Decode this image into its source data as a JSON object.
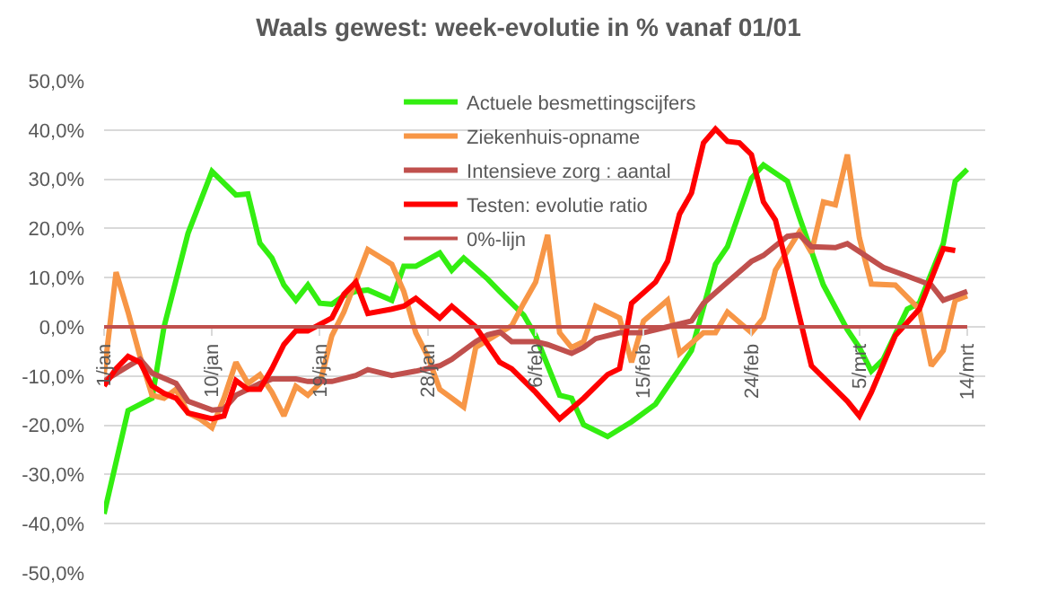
{
  "chart_data": {
    "type": "line",
    "title": "Waals gewest: week-evolutie in % vanaf 01/01",
    "xlim": [
      "--01-01",
      "--03-15T12:00"
    ],
    "xticks": [
      {
        "value": "--01-01",
        "label": "1/jan"
      },
      {
        "value": "--01-10",
        "label": "10/jan"
      },
      {
        "value": "--01-19",
        "label": "19/jan"
      },
      {
        "value": "--01-28",
        "label": "28/jan"
      },
      {
        "value": "--02-06",
        "label": "6/feb"
      },
      {
        "value": "--02-15",
        "label": "15/feb"
      },
      {
        "value": "--02-24",
        "label": "24/feb"
      },
      {
        "value": "--03-05",
        "label": "5/mrt"
      },
      {
        "value": "--03-14",
        "label": "14/mrt"
      }
    ],
    "ylim": [
      -50,
      50
    ],
    "yticks": [
      {
        "value": -50,
        "label": "-50,0%"
      },
      {
        "value": -40,
        "label": "-40,0%"
      },
      {
        "value": -30,
        "label": "-30,0%"
      },
      {
        "value": -20,
        "label": "-20,0%"
      },
      {
        "value": -10,
        "label": "-10,0%"
      },
      {
        "value": 0,
        "label": "0,0%"
      },
      {
        "value": 10,
        "label": "10,0%"
      },
      {
        "value": 20,
        "label": "20,0%"
      },
      {
        "value": 30,
        "label": "30,0%"
      },
      {
        "value": 40,
        "label": "40,0%"
      },
      {
        "value": 50,
        "label": "50,0%"
      }
    ],
    "grid": "y",
    "legend": "top",
    "marker": "none",
    "line_style": "solid",
    "series": [
      {
        "name": "Actuele besmettingscijfers",
        "color": "#33ee11",
        "x": [
          "--01-01",
          "--01-03",
          "--01-05",
          "--01-06",
          "--01-08",
          "--01-10",
          "--01-12",
          "--01-13",
          "--01-14",
          "--01-15",
          "--01-16",
          "--01-17",
          "--01-18",
          "--01-19",
          "--01-20",
          "--01-21",
          "--01-22",
          "--01-23",
          "--01-25",
          "--01-26",
          "--01-27",
          "--01-29",
          "--01-30",
          "--01-31",
          "--02-02",
          "--02-03",
          "--02-05",
          "--02-06",
          "--02-08",
          "--02-09",
          "--02-10",
          "--02-12",
          "--02-14",
          "--02-16",
          "--02-18",
          "--02-19",
          "--02-21",
          "--02-22",
          "--02-24",
          "--02-25",
          "--02-27",
          "--02-28",
          "--03-02",
          "--03-04",
          "--03-05",
          "--03-06",
          "--03-07",
          "--03-09",
          "--03-10",
          "--03-12",
          "--03-13",
          "--03-14"
        ],
        "values": [
          -38,
          -17,
          -14.5,
          0,
          19,
          31.6,
          26.8,
          27,
          17,
          14,
          8.5,
          5.4,
          8.5,
          4.8,
          4.6,
          6.3,
          7.2,
          7.5,
          5.4,
          12.3,
          12.3,
          15,
          11.5,
          14,
          9.7,
          7.2,
          2.4,
          -1.8,
          -13.9,
          -14.5,
          -19.9,
          -22.3,
          -19.3,
          -15.7,
          -8.5,
          -4.8,
          12.7,
          16.3,
          30.2,
          32.9,
          29.6,
          22.3,
          8.5,
          -0.6,
          -4.2,
          -9,
          -6.6,
          3.6,
          4.8,
          16.9,
          29.6,
          32
        ]
      },
      {
        "name": "Ziekenhuis-opname",
        "color": "#f79646",
        "x": [
          "--01-01",
          "--01-02",
          "--01-03",
          "--01-04",
          "--01-05",
          "--01-06",
          "--01-07",
          "--01-08",
          "--01-09",
          "--01-10",
          "--01-11",
          "--01-12",
          "--01-13",
          "--01-14",
          "--01-15",
          "--01-16",
          "--01-17",
          "--01-18",
          "--01-19",
          "--01-20",
          "--01-21",
          "--01-23",
          "--01-25",
          "--01-26",
          "--01-27",
          "--01-28",
          "--01-29",
          "--01-30",
          "--01-31",
          "--02-01",
          "--02-03",
          "--02-04",
          "--02-05",
          "--02-06",
          "--02-07",
          "--02-08",
          "--02-09",
          "--02-10",
          "--02-11",
          "--02-13",
          "--02-14",
          "--02-15",
          "--02-17",
          "--02-18",
          "--02-20",
          "--02-21",
          "--02-22",
          "--02-24",
          "--02-25",
          "--02-26",
          "--02-28",
          "--03-01",
          "--03-02",
          "--03-03",
          "--03-04",
          "--03-05",
          "--03-06",
          "--03-08",
          "--03-10",
          "--03-11",
          "--03-12",
          "--03-13",
          "--03-14"
        ],
        "values": [
          -9.7,
          11.1,
          3,
          -6,
          -13.9,
          -14.5,
          -12.7,
          -17.5,
          -18.7,
          -20.5,
          -14.5,
          -7.2,
          -11.5,
          -9.7,
          -13.3,
          -18.1,
          -12.1,
          -13.9,
          -11.5,
          -1.8,
          3,
          15.7,
          12.7,
          7.2,
          -1.2,
          -6,
          -12.7,
          -14.5,
          -16.3,
          -4.2,
          -1.2,
          0.2,
          4.8,
          9.1,
          18.7,
          -1.2,
          -4.2,
          -3,
          4.2,
          1.8,
          -7.2,
          1.2,
          5.4,
          -5.4,
          -1.2,
          -1.2,
          3,
          -1.2,
          1.8,
          11.5,
          19.3,
          15.1,
          25.4,
          24.8,
          35,
          18.1,
          8.7,
          8.5,
          3.6,
          -7.9,
          -4.8,
          5.4,
          6.3
        ]
      },
      {
        "name": "Intensieve zorg : aantal",
        "color": "#c0504d",
        "x": [
          "--01-01",
          "--01-03",
          "--01-04",
          "--01-05",
          "--01-07",
          "--01-08",
          "--01-10",
          "--01-11",
          "--01-12",
          "--01-14",
          "--01-15",
          "--01-17",
          "--01-18",
          "--01-20",
          "--01-22",
          "--01-23",
          "--01-25",
          "--01-27",
          "--01-29",
          "--01-30",
          "--02-01",
          "--02-02",
          "--02-03",
          "--02-04",
          "--02-06",
          "--02-07",
          "--02-09",
          "--02-10",
          "--02-11",
          "--02-13",
          "--02-15",
          "--02-17",
          "--02-19",
          "--02-20",
          "--02-22",
          "--02-24",
          "--02-25",
          "--02-27",
          "--02-28",
          "--03-01",
          "--03-03",
          "--03-04",
          "--03-07",
          "--03-09",
          "--03-11",
          "--03-12",
          "--03-14"
        ],
        "values": [
          -11,
          -8,
          -6.6,
          -9.4,
          -11.5,
          -15.1,
          -16.9,
          -16.7,
          -13.9,
          -11.5,
          -10.6,
          -10.6,
          -11.1,
          -11.1,
          -9.9,
          -8.7,
          -9.9,
          -9,
          -7.9,
          -6.6,
          -3,
          -1.6,
          -1,
          -3,
          -3,
          -3.6,
          -5.4,
          -4.2,
          -2.4,
          -1.2,
          -1.2,
          0,
          1.2,
          4.8,
          9.1,
          13.3,
          14.5,
          18.4,
          18.7,
          16.3,
          16.1,
          16.9,
          12.1,
          10.3,
          8.5,
          5.4,
          7.2
        ]
      },
      {
        "name": "Testen: evolutie ratio",
        "color": "#ff0000",
        "x": [
          "--01-01",
          "--01-02",
          "--01-03",
          "--01-04",
          "--01-05",
          "--01-06",
          "--01-07",
          "--01-08",
          "--01-10",
          "--01-11",
          "--01-12",
          "--01-13",
          "--01-14",
          "--01-15",
          "--01-16",
          "--01-17",
          "--01-18",
          "--01-20",
          "--01-21",
          "--01-22",
          "--01-23",
          "--01-25",
          "--01-26",
          "--01-27",
          "--01-29",
          "--01-30",
          "--02-01",
          "--02-03",
          "--02-04",
          "--02-06",
          "--02-08",
          "--02-10",
          "--02-12",
          "--02-13",
          "--02-14",
          "--02-16",
          "--02-17",
          "--02-18",
          "--02-19",
          "--02-20",
          "--02-21",
          "--02-22",
          "--02-23",
          "--02-24",
          "--02-25",
          "--02-26",
          "--02-27",
          "--03-01",
          "--03-03",
          "--03-04",
          "--03-05",
          "--03-06",
          "--03-08",
          "--03-10",
          "--03-12",
          "--03-13"
        ],
        "values": [
          -12,
          -8.5,
          -6,
          -7.2,
          -12,
          -13.5,
          -14.5,
          -17.5,
          -18.7,
          -18.1,
          -10.9,
          -12.7,
          -12.7,
          -8.5,
          -3.6,
          -0.8,
          -0.8,
          1.8,
          6.6,
          9.1,
          2.7,
          3.6,
          4.2,
          5.8,
          1.8,
          4.2,
          0,
          -7.2,
          -8.5,
          -13.3,
          -18.7,
          -14.5,
          -9.7,
          -8.5,
          4.8,
          9.1,
          13.3,
          22.9,
          27.2,
          37.4,
          40.2,
          37.7,
          37.4,
          35,
          25.4,
          21.7,
          12.1,
          -7.9,
          -12.7,
          -15.1,
          -18.1,
          -13.3,
          -1.8,
          3.6,
          15.9,
          15.5
        ]
      },
      {
        "name": "0%-lijn",
        "color": "#c0504d",
        "x": [
          "--01-01",
          "--03-14"
        ],
        "values": [
          0,
          0
        ]
      }
    ]
  }
}
